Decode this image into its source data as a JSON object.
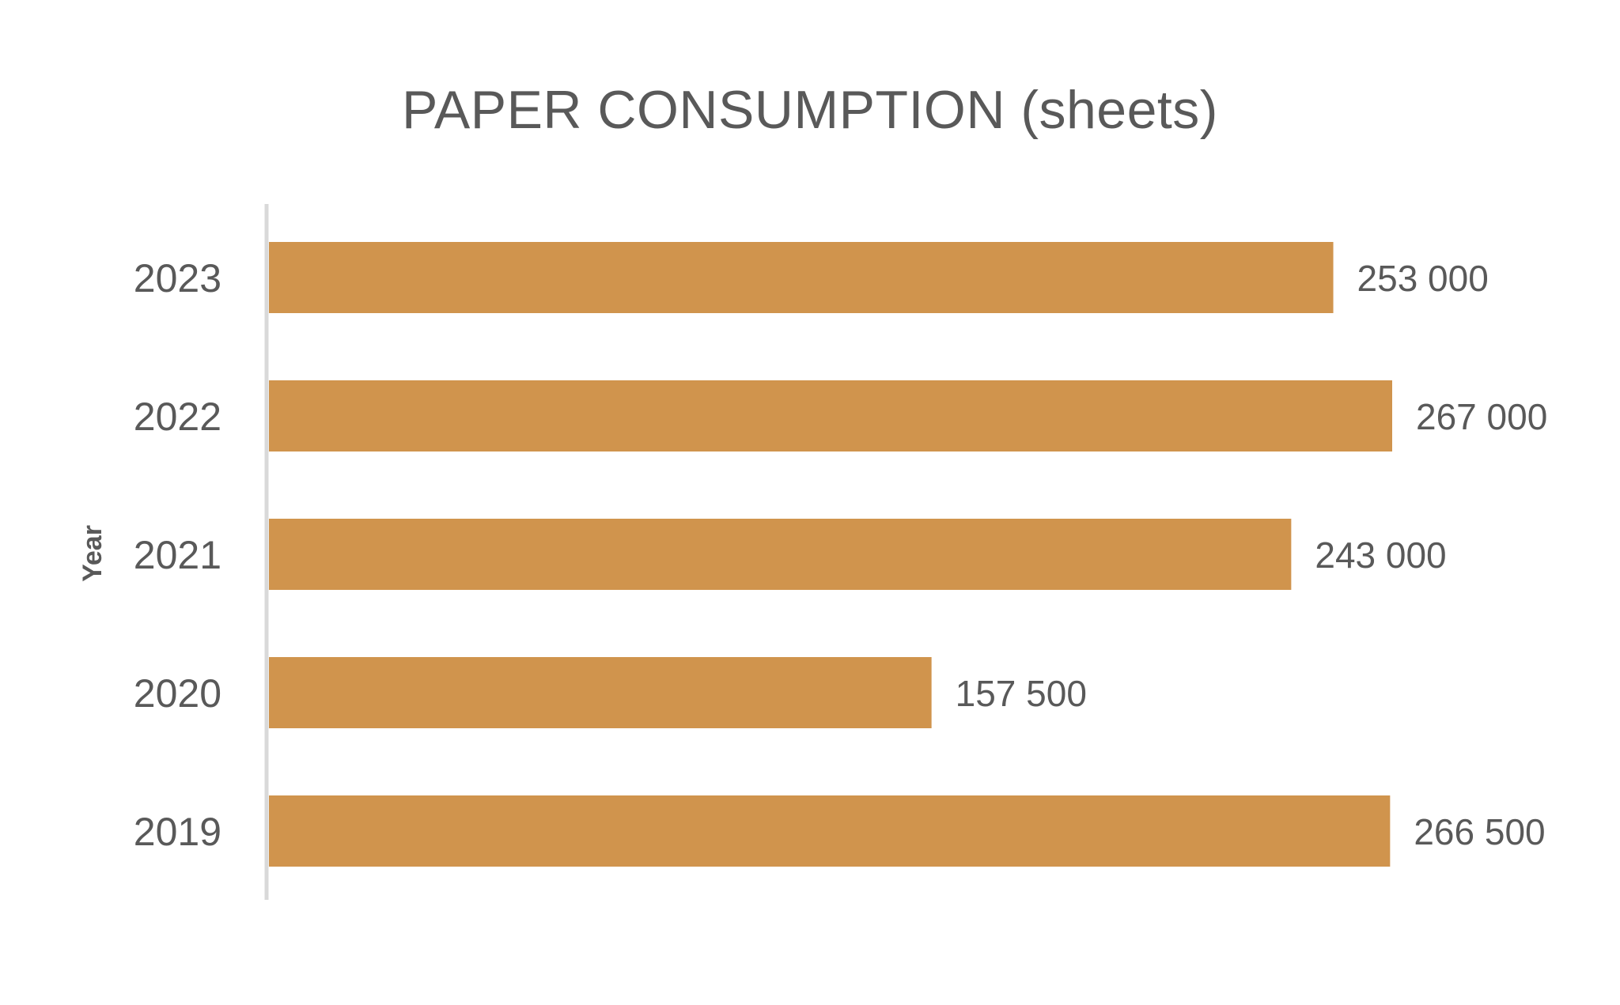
{
  "chart_data": {
    "type": "bar",
    "orientation": "horizontal",
    "title": "PAPER CONSUMPTION (sheets)",
    "ylabel": "Year",
    "xlabel": "",
    "categories": [
      "2023",
      "2022",
      "2021",
      "2020",
      "2019"
    ],
    "values": [
      253000,
      267000,
      243000,
      157500,
      266500
    ],
    "data_labels": [
      "253 000",
      "267 000",
      "243 000",
      "157 500",
      "266 500"
    ],
    "xlim": [
      0,
      267000
    ],
    "grid": false,
    "legend": "none",
    "colors": {
      "bar": "#D0944D",
      "axis_line": "#D9D9D9",
      "text": "#595959"
    }
  }
}
